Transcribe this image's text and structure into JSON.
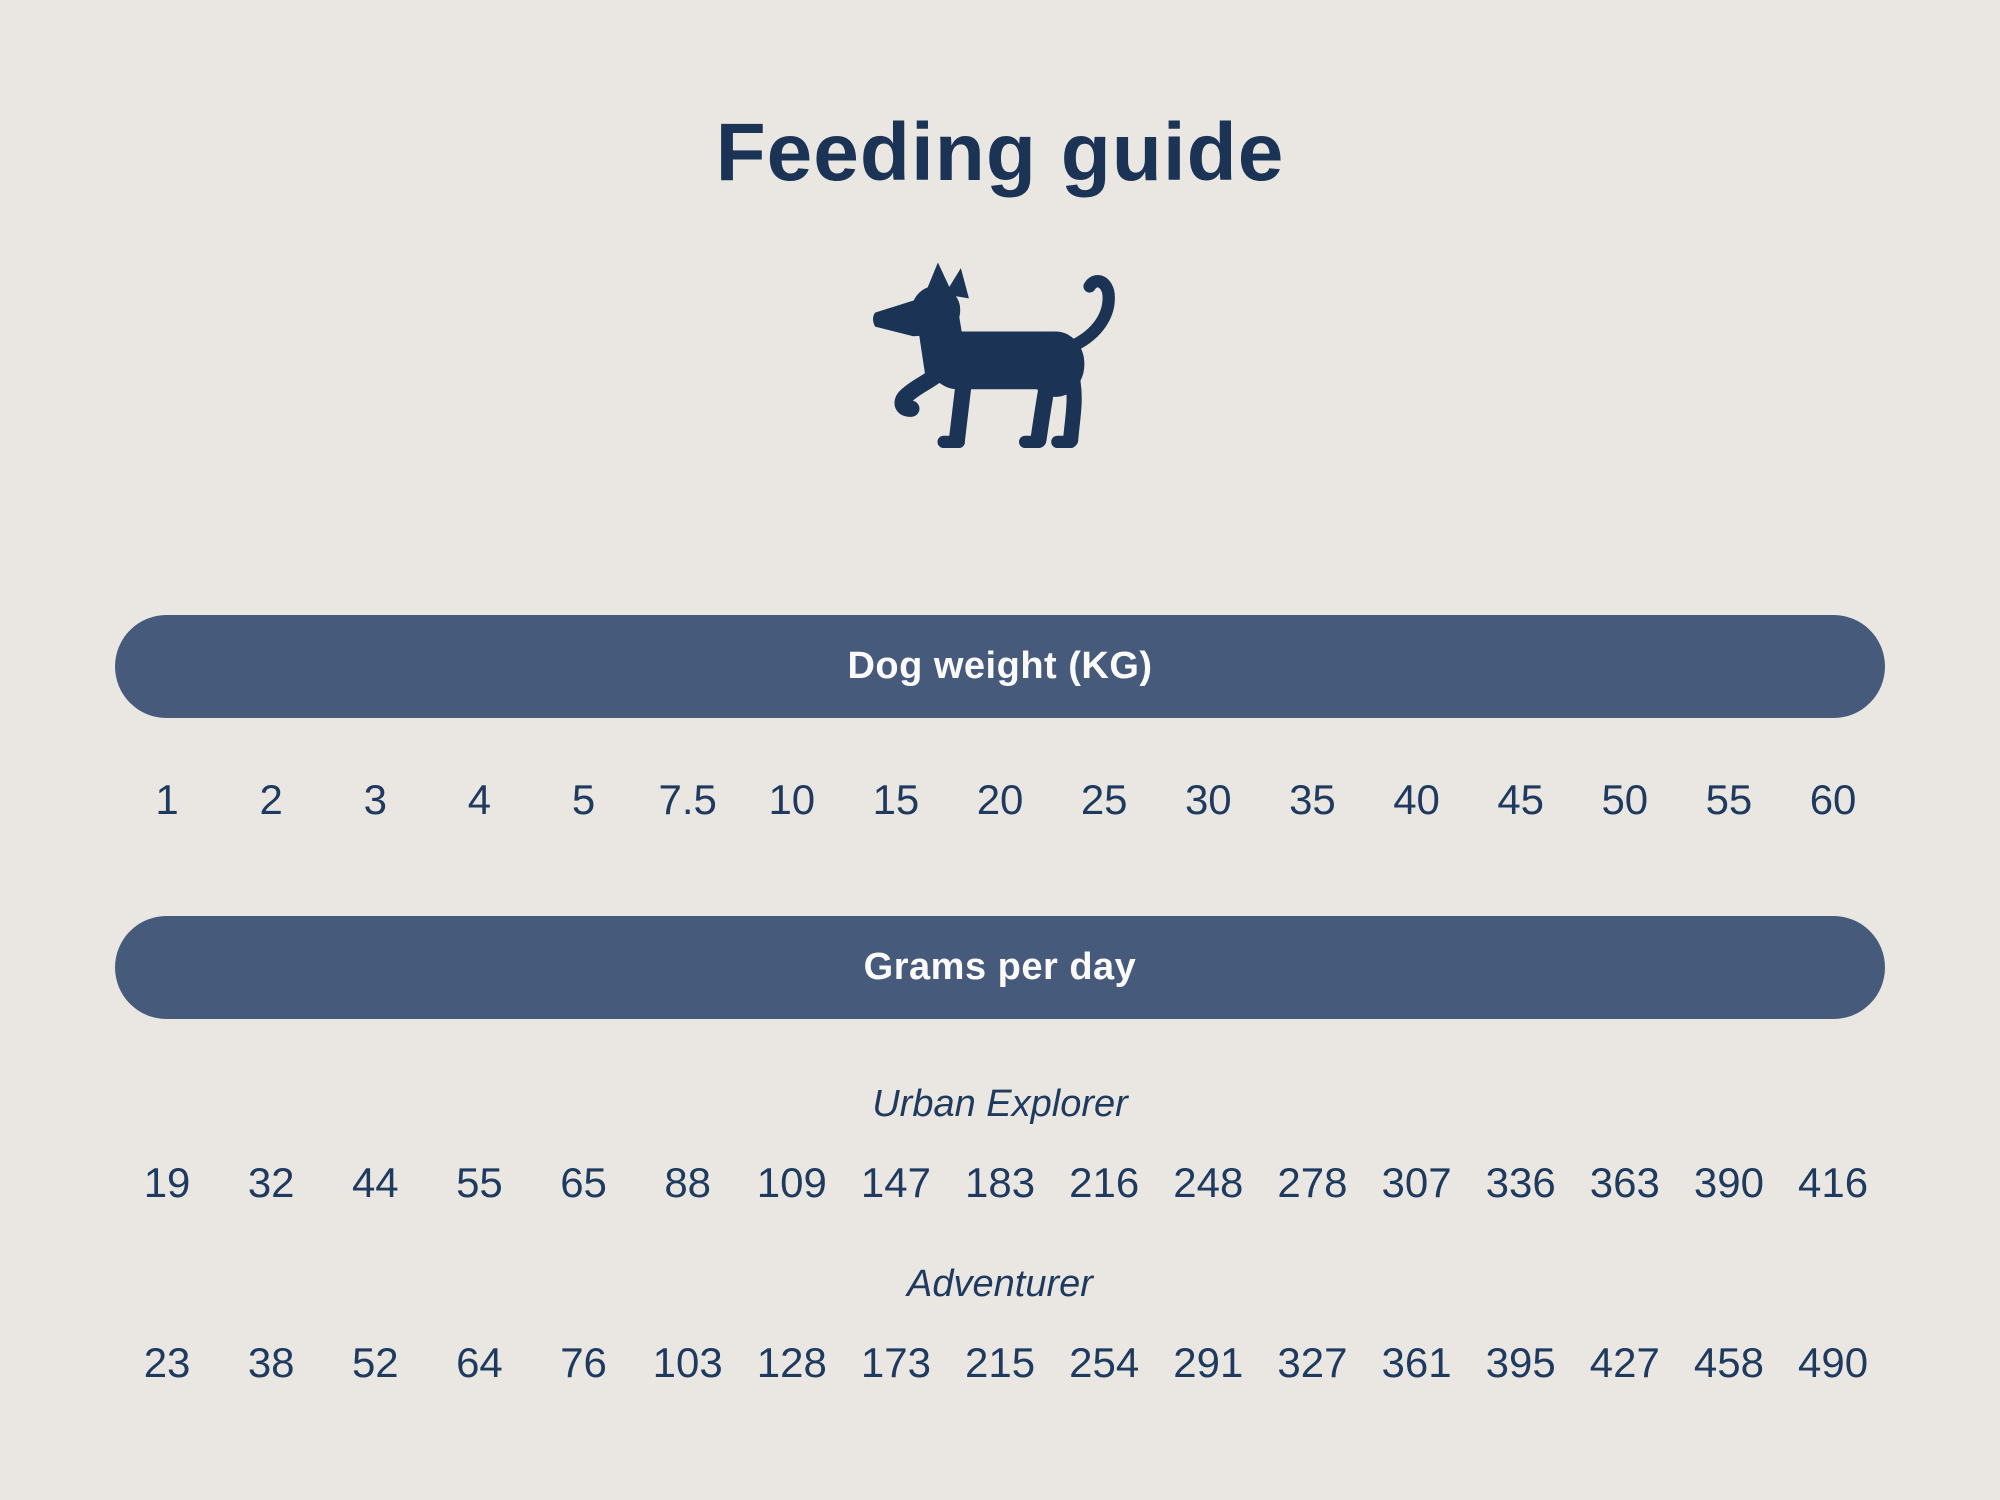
{
  "colors": {
    "bg": "#eae7e3",
    "navy": "#1b3355",
    "num": "#1e3a5e",
    "banner": "#465b7c",
    "banner_text": "#fbfaf8"
  },
  "header": {
    "title": "Feeding guide"
  },
  "icons": {
    "dog": "dog-icon"
  },
  "banners": {
    "weight": "Dog weight (KG)",
    "grams": "Grams per day"
  },
  "weights": [
    "1",
    "2",
    "3",
    "4",
    "5",
    "7.5",
    "10",
    "15",
    "20",
    "25",
    "30",
    "35",
    "40",
    "45",
    "50",
    "55",
    "60"
  ],
  "plans": [
    {
      "name": "Urban Explorer",
      "values": [
        "19",
        "32",
        "44",
        "55",
        "65",
        "88",
        "109",
        "147",
        "183",
        "216",
        "248",
        "278",
        "307",
        "336",
        "363",
        "390",
        "416"
      ]
    },
    {
      "name": "Adventurer",
      "values": [
        "23",
        "38",
        "52",
        "64",
        "76",
        "103",
        "128",
        "173",
        "215",
        "254",
        "291",
        "327",
        "361",
        "395",
        "427",
        "458",
        "490"
      ]
    }
  ],
  "chart_data": {
    "type": "table",
    "title": "Feeding guide",
    "xlabel": "Dog weight (KG)",
    "ylabel": "Grams per day",
    "categories": [
      1,
      2,
      3,
      4,
      5,
      7.5,
      10,
      15,
      20,
      25,
      30,
      35,
      40,
      45,
      50,
      55,
      60
    ],
    "series": [
      {
        "name": "Urban Explorer",
        "values": [
          19,
          32,
          44,
          55,
          65,
          88,
          109,
          147,
          183,
          216,
          248,
          278,
          307,
          336,
          363,
          390,
          416
        ]
      },
      {
        "name": "Adventurer",
        "values": [
          23,
          38,
          52,
          64,
          76,
          103,
          128,
          173,
          215,
          254,
          291,
          327,
          361,
          395,
          427,
          458,
          490
        ]
      }
    ],
    "legend_position": "row-labels-above-each-series",
    "grid": false
  }
}
